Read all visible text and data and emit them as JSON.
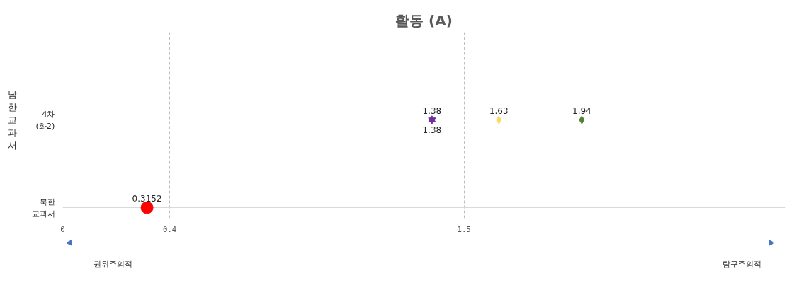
{
  "chart_data": {
    "type": "scatter",
    "title": "활동 (A)",
    "orientation": "horizontal",
    "categories": [
      "4차 (화2)",
      "북한교과서"
    ],
    "series": [
      {
        "color": "#7030a0",
        "marker": "triangle",
        "values": [
          1.38,
          null
        ]
      },
      {
        "color": "#7030a0",
        "marker": "triangle",
        "values": [
          1.38,
          null
        ]
      },
      {
        "color": "#ffd966",
        "marker": "diamond",
        "values": [
          1.63,
          null
        ]
      },
      {
        "color": "#548235",
        "marker": "diamond",
        "values": [
          1.94,
          null
        ]
      },
      {
        "color": "#ff0000",
        "marker": "circle",
        "values": [
          null,
          0.3152
        ]
      }
    ],
    "xlim": [
      0,
      2.7
    ],
    "xticks": [
      0,
      0.4,
      1.5
    ],
    "grid": true,
    "data_labels": true,
    "annotations": [
      "남한교과서",
      "권위주의적",
      "탐구주의적"
    ]
  }
}
